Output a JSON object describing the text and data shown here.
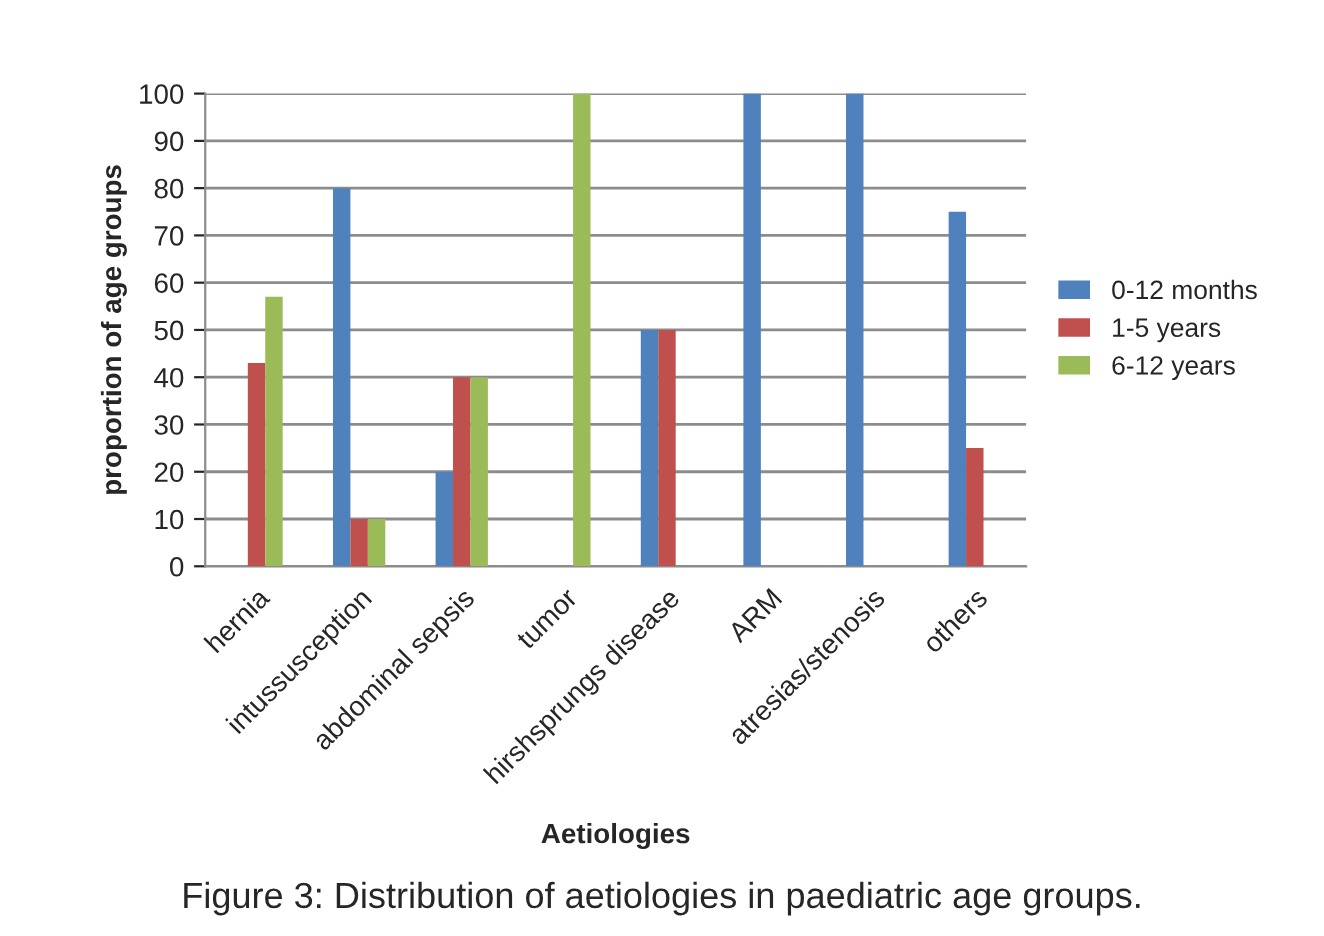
{
  "chart_data": {
    "type": "bar",
    "xlabel": "Aetiologies",
    "ylabel": "proportion of age groups",
    "categories": [
      "hernia",
      "intussusception",
      "abdominal sepsis",
      "tumor",
      "hirshsprungs disease",
      "ARM",
      "atresias/stenosis",
      "others"
    ],
    "series": [
      {
        "name": "0-12 months",
        "color": "#4f81bd",
        "values": [
          0,
          80,
          20,
          0,
          50,
          100,
          100,
          75
        ]
      },
      {
        "name": "1-5 years",
        "color": "#c0504d",
        "values": [
          43,
          10,
          40,
          0,
          50,
          0,
          0,
          25
        ]
      },
      {
        "name": "6-12 years",
        "color": "#9bbb59",
        "values": [
          57,
          10,
          40,
          100,
          0,
          0,
          0,
          0
        ]
      }
    ],
    "ylim": [
      0,
      100
    ],
    "yticks": [
      0,
      10,
      20,
      30,
      40,
      50,
      60,
      70,
      80,
      90,
      100
    ],
    "grid": "y",
    "legend": "right",
    "annotations": [
      "Figure 3: Distribution of aetiologies in paediatric age groups."
    ]
  }
}
